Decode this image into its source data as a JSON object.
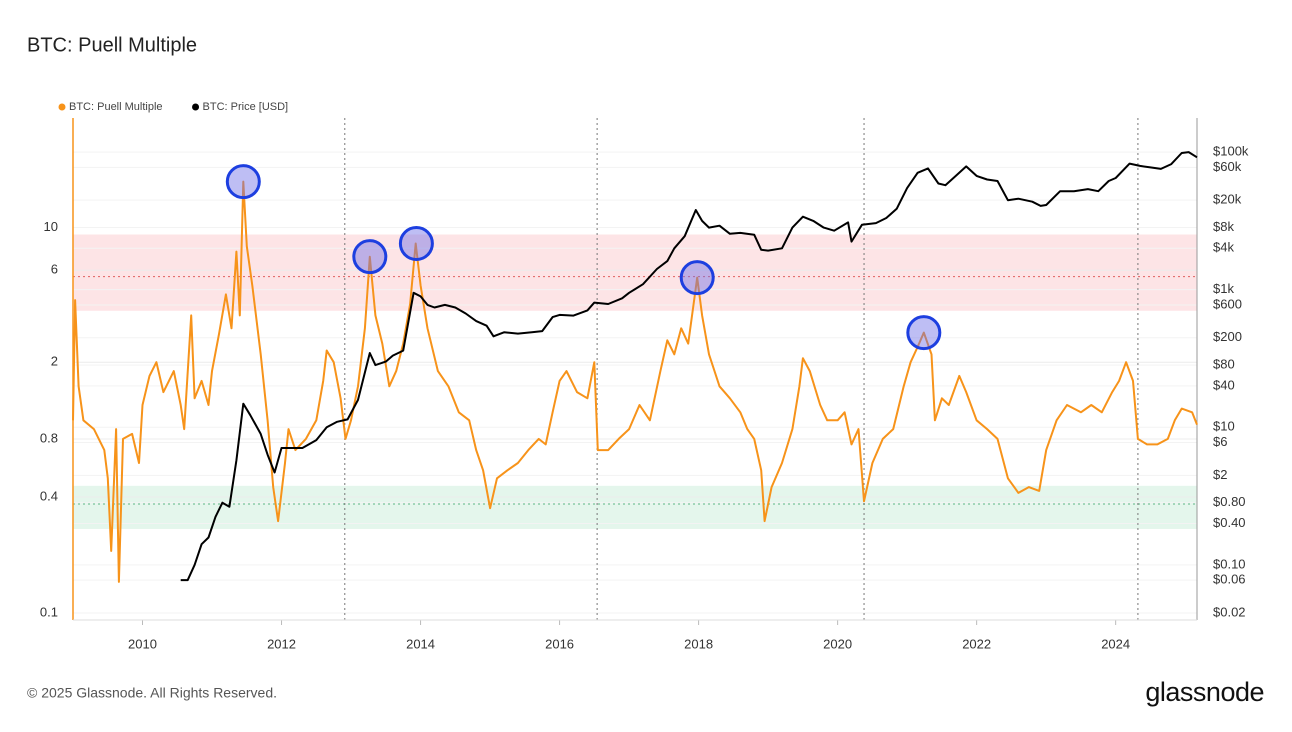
{
  "chart_data": {
    "type": "line",
    "title": "BTC: Puell Multiple",
    "source": "© 2025 Glassnode. All Rights Reserved.",
    "logo": "glassnode",
    "xlim": [
      2009,
      2025.17
    ],
    "xticks": [
      2010,
      2012,
      2014,
      2016,
      2018,
      2020,
      2022,
      2024
    ],
    "ylim": [
      0.092,
      37
    ],
    "ylog": true,
    "yticks": [
      0.1,
      0.4,
      0.8,
      2,
      6,
      10
    ],
    "y2lim": [
      0.0158,
      313000
    ],
    "y2log": true,
    "y2ticks": [
      {
        "value": 100000,
        "label": "$100k"
      },
      {
        "value": 60000,
        "label": "$60k"
      },
      {
        "value": 20000,
        "label": "$20k"
      },
      {
        "value": 8000,
        "label": "$8k"
      },
      {
        "value": 4000,
        "label": "$4k"
      },
      {
        "value": 1000,
        "label": "$1k"
      },
      {
        "value": 600,
        "label": "$600"
      },
      {
        "value": 200,
        "label": "$200"
      },
      {
        "value": 80,
        "label": "$80"
      },
      {
        "value": 40,
        "label": "$40"
      },
      {
        "value": 10,
        "label": "$10"
      },
      {
        "value": 6,
        "label": "$6"
      },
      {
        "value": 2,
        "label": "$2"
      },
      {
        "value": 0.8,
        "label": "$0.80"
      },
      {
        "value": 0.4,
        "label": "$0.40"
      },
      {
        "value": 0.1,
        "label": "$0.10"
      },
      {
        "value": 0.06,
        "label": "$0.06"
      },
      {
        "value": 0.02,
        "label": "$0.02"
      }
    ],
    "grid": true,
    "bands": [
      {
        "from": 3.7,
        "to": 9.2,
        "level": 5.56,
        "color": "#fde4e6",
        "level_color": "#e06060"
      },
      {
        "from": 0.273,
        "to": 0.457,
        "level": 0.368,
        "color": "#e4f6ec",
        "level_color": "#5bb585"
      }
    ],
    "halvings": [
      2012.91,
      2016.54,
      2020.38,
      2024.32
    ],
    "highlights": [
      {
        "x": 2011.45,
        "y": 17.3
      },
      {
        "x": 2013.27,
        "y": 7.06
      },
      {
        "x": 2013.94,
        "y": 8.26
      },
      {
        "x": 2017.98,
        "y": 5.5
      },
      {
        "x": 2021.24,
        "y": 2.85
      }
    ],
    "series": [
      {
        "name": "BTC: Puell Multiple",
        "color": "#f7931a",
        "x": [
          2009.0,
          2009.03,
          2009.08,
          2009.15,
          2009.3,
          2009.45,
          2009.5,
          2009.55,
          2009.62,
          2009.66,
          2009.72,
          2009.85,
          2009.95,
          2010.0,
          2010.1,
          2010.2,
          2010.3,
          2010.45,
          2010.55,
          2010.6,
          2010.7,
          2010.75,
          2010.85,
          2010.95,
          2011.0,
          2011.1,
          2011.2,
          2011.28,
          2011.35,
          2011.4,
          2011.45,
          2011.5,
          2011.58,
          2011.7,
          2011.8,
          2011.88,
          2011.95,
          2012.05,
          2012.1,
          2012.2,
          2012.35,
          2012.5,
          2012.6,
          2012.65,
          2012.75,
          2012.85,
          2012.92,
          2013.0,
          2013.1,
          2013.2,
          2013.27,
          2013.35,
          2013.45,
          2013.55,
          2013.65,
          2013.75,
          2013.85,
          2013.93,
          2014.0,
          2014.1,
          2014.25,
          2014.4,
          2014.55,
          2014.7,
          2014.8,
          2014.9,
          2015.0,
          2015.1,
          2015.25,
          2015.4,
          2015.55,
          2015.7,
          2015.8,
          2015.9,
          2016.0,
          2016.1,
          2016.25,
          2016.4,
          2016.5,
          2016.55,
          2016.7,
          2016.85,
          2017.0,
          2017.15,
          2017.3,
          2017.45,
          2017.55,
          2017.65,
          2017.75,
          2017.85,
          2017.98,
          2018.05,
          2018.15,
          2018.3,
          2018.45,
          2018.6,
          2018.7,
          2018.8,
          2018.9,
          2018.95,
          2019.05,
          2019.2,
          2019.35,
          2019.45,
          2019.5,
          2019.6,
          2019.75,
          2019.85,
          2020.0,
          2020.1,
          2020.2,
          2020.3,
          2020.38,
          2020.5,
          2020.65,
          2020.8,
          2020.95,
          2021.05,
          2021.15,
          2021.24,
          2021.35,
          2021.4,
          2021.5,
          2021.6,
          2021.75,
          2021.85,
          2022.0,
          2022.15,
          2022.3,
          2022.45,
          2022.6,
          2022.75,
          2022.9,
          2023.0,
          2023.15,
          2023.3,
          2023.5,
          2023.65,
          2023.8,
          2023.95,
          2024.05,
          2024.15,
          2024.25,
          2024.32,
          2024.45,
          2024.6,
          2024.75,
          2024.85,
          2024.95,
          2025.1,
          2025.17
        ],
        "values": [
          1.0,
          4.2,
          1.5,
          1.0,
          0.9,
          0.7,
          0.5,
          0.21,
          0.9,
          0.145,
          0.8,
          0.85,
          0.6,
          1.2,
          1.7,
          2.0,
          1.4,
          1.8,
          1.2,
          0.9,
          3.5,
          1.3,
          1.6,
          1.2,
          1.8,
          2.8,
          4.5,
          3.0,
          7.5,
          3.5,
          17.3,
          8,
          5,
          2.2,
          1.0,
          0.45,
          0.3,
          0.6,
          0.9,
          0.7,
          0.8,
          1.0,
          1.6,
          2.3,
          2.0,
          1.3,
          0.8,
          1.0,
          1.5,
          3,
          7.06,
          3.5,
          2.5,
          1.5,
          1.8,
          2.5,
          4,
          8.26,
          5,
          3,
          1.8,
          1.5,
          1.1,
          1.0,
          0.7,
          0.55,
          0.35,
          0.5,
          0.55,
          0.6,
          0.7,
          0.8,
          0.75,
          1.1,
          1.6,
          1.8,
          1.4,
          1.3,
          2.0,
          0.7,
          0.7,
          0.8,
          0.9,
          1.2,
          1.0,
          1.8,
          2.6,
          2.2,
          3.0,
          2.5,
          5.5,
          3.5,
          2.2,
          1.5,
          1.3,
          1.1,
          0.9,
          0.8,
          0.55,
          0.3,
          0.45,
          0.6,
          0.9,
          1.5,
          2.1,
          1.8,
          1.2,
          1.0,
          1.0,
          1.1,
          0.75,
          0.9,
          0.38,
          0.6,
          0.8,
          0.9,
          1.5,
          2.0,
          2.4,
          2.85,
          2.2,
          1.0,
          1.3,
          1.2,
          1.7,
          1.4,
          1.0,
          0.9,
          0.8,
          0.5,
          0.42,
          0.45,
          0.43,
          0.7,
          1.0,
          1.2,
          1.1,
          1.2,
          1.1,
          1.4,
          1.6,
          2.0,
          1.6,
          0.8,
          0.75,
          0.75,
          0.8,
          1.0,
          1.15,
          1.1,
          0.95
        ]
      },
      {
        "name": "BTC: Price [USD]",
        "color": "#000000",
        "axis": "y2",
        "x": [
          2010.55,
          2010.65,
          2010.75,
          2010.85,
          2010.95,
          2011.05,
          2011.15,
          2011.25,
          2011.35,
          2011.45,
          2011.55,
          2011.7,
          2011.8,
          2011.9,
          2012.0,
          2012.15,
          2012.3,
          2012.5,
          2012.65,
          2012.8,
          2012.95,
          2013.1,
          2013.27,
          2013.35,
          2013.5,
          2013.6,
          2013.75,
          2013.9,
          2014.0,
          2014.1,
          2014.2,
          2014.35,
          2014.5,
          2014.65,
          2014.8,
          2014.95,
          2015.05,
          2015.2,
          2015.4,
          2015.6,
          2015.75,
          2015.9,
          2016.0,
          2016.2,
          2016.4,
          2016.5,
          2016.7,
          2016.9,
          2017.0,
          2017.2,
          2017.4,
          2017.55,
          2017.65,
          2017.8,
          2017.96,
          2018.05,
          2018.15,
          2018.3,
          2018.45,
          2018.6,
          2018.8,
          2018.9,
          2019.0,
          2019.2,
          2019.35,
          2019.5,
          2019.65,
          2019.8,
          2019.95,
          2020.15,
          2020.2,
          2020.35,
          2020.55,
          2020.7,
          2020.85,
          2021.0,
          2021.15,
          2021.3,
          2021.45,
          2021.55,
          2021.7,
          2021.85,
          2022.0,
          2022.15,
          2022.3,
          2022.45,
          2022.6,
          2022.8,
          2022.92,
          2023.0,
          2023.2,
          2023.4,
          2023.6,
          2023.75,
          2023.9,
          2024.0,
          2024.2,
          2024.35,
          2024.5,
          2024.65,
          2024.8,
          2024.95,
          2025.05,
          2025.17
        ],
        "values": [
          0.06,
          0.06,
          0.1,
          0.2,
          0.25,
          0.5,
          0.8,
          0.7,
          3.3,
          22,
          15,
          8,
          4,
          2.2,
          5,
          5,
          5,
          6.5,
          10,
          12,
          13,
          25,
          120,
          80,
          90,
          110,
          130,
          900,
          800,
          600,
          550,
          600,
          550,
          450,
          350,
          300,
          210,
          240,
          230,
          240,
          250,
          400,
          430,
          420,
          500,
          650,
          620,
          750,
          900,
          1200,
          2000,
          2600,
          4000,
          6000,
          14400,
          10000,
          8000,
          8500,
          6500,
          6700,
          6300,
          3800,
          3700,
          4000,
          8000,
          11500,
          10000,
          8000,
          7200,
          9500,
          5000,
          8800,
          9300,
          11000,
          15000,
          30000,
          50000,
          58000,
          35000,
          33000,
          45000,
          62000,
          45000,
          40000,
          38000,
          20000,
          21000,
          19000,
          16500,
          17000,
          27000,
          27000,
          29000,
          27000,
          38000,
          42000,
          68000,
          63000,
          60000,
          57000,
          67000,
          97000,
          100000,
          84000
        ]
      }
    ]
  }
}
